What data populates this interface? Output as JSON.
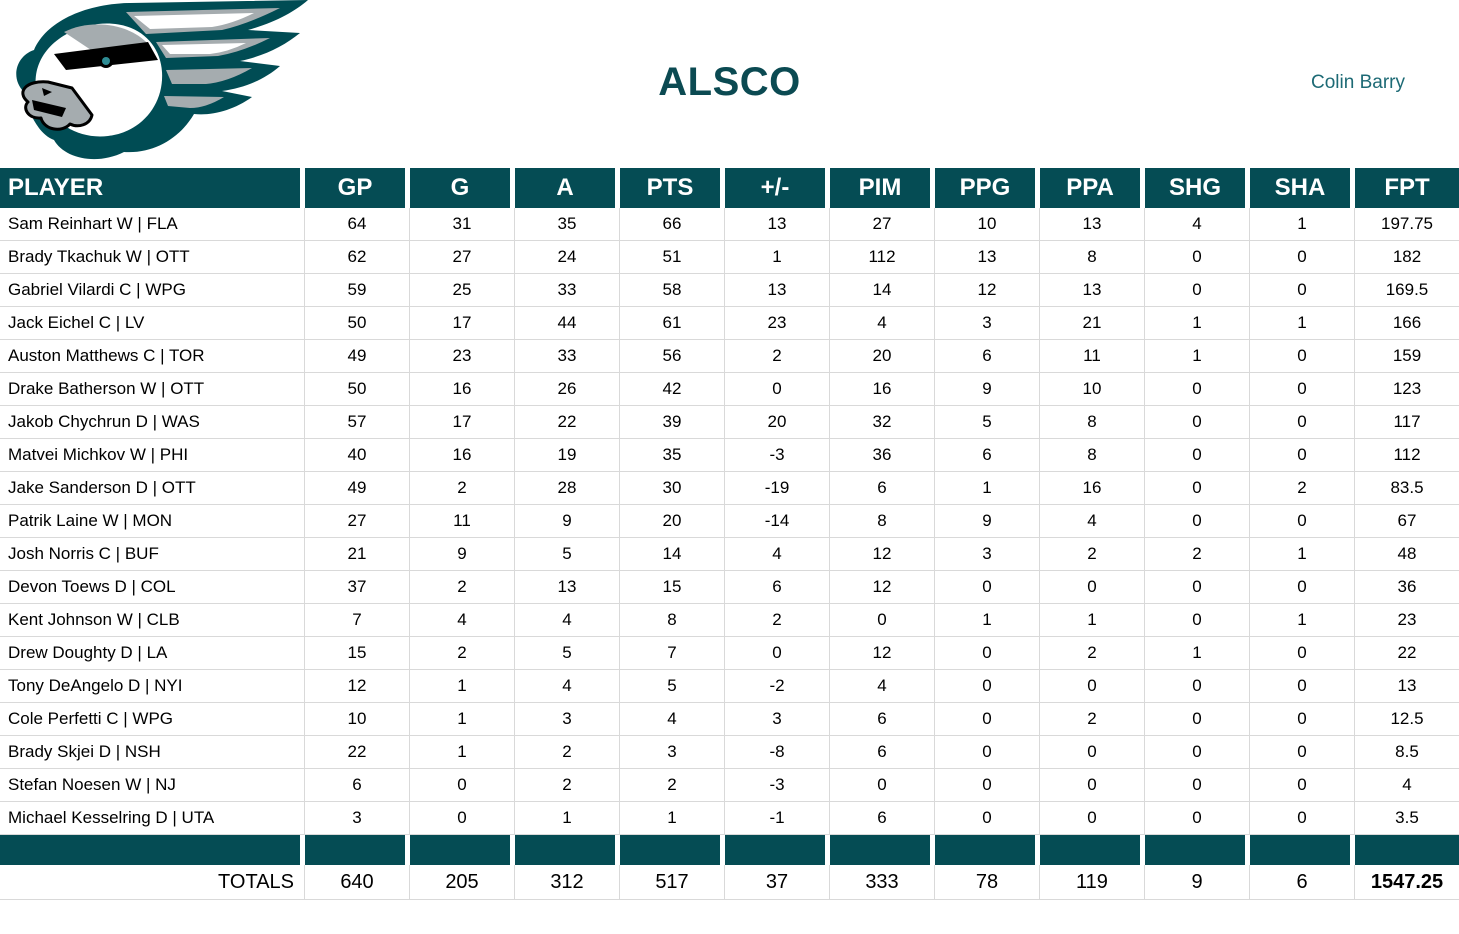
{
  "header": {
    "title": "ALSCO",
    "manager": "Colin Barry",
    "logo_alt": "eagle-head-logo"
  },
  "colors": {
    "header_bg": "#054C54",
    "title_text": "#0B4A52",
    "manager_text": "#1D6A75",
    "gridline": "#D9D9D9",
    "logo_green": "#004C54",
    "logo_silver": "#A5ACAF"
  },
  "table": {
    "columns": [
      "PLAYER",
      "GP",
      "G",
      "A",
      "PTS",
      "+/-",
      "PIM",
      "PPG",
      "PPA",
      "SHG",
      "SHA",
      "FPT"
    ],
    "rows": [
      {
        "player": "Sam Reinhart W | FLA",
        "stats": [
          64,
          31,
          35,
          66,
          13,
          27,
          10,
          13,
          4,
          1,
          197.75
        ]
      },
      {
        "player": "Brady Tkachuk W | OTT",
        "stats": [
          62,
          27,
          24,
          51,
          1,
          112,
          13,
          8,
          0,
          0,
          182
        ]
      },
      {
        "player": "Gabriel Vilardi C | WPG",
        "stats": [
          59,
          25,
          33,
          58,
          13,
          14,
          12,
          13,
          0,
          0,
          169.5
        ]
      },
      {
        "player": "Jack Eichel C | LV",
        "stats": [
          50,
          17,
          44,
          61,
          23,
          4,
          3,
          21,
          1,
          1,
          166
        ]
      },
      {
        "player": "Auston Matthews C | TOR",
        "stats": [
          49,
          23,
          33,
          56,
          2,
          20,
          6,
          11,
          1,
          0,
          159
        ]
      },
      {
        "player": "Drake Batherson W | OTT",
        "stats": [
          50,
          16,
          26,
          42,
          0,
          16,
          9,
          10,
          0,
          0,
          123
        ]
      },
      {
        "player": "Jakob Chychrun D | WAS",
        "stats": [
          57,
          17,
          22,
          39,
          20,
          32,
          5,
          8,
          0,
          0,
          117
        ]
      },
      {
        "player": "Matvei Michkov W | PHI",
        "stats": [
          40,
          16,
          19,
          35,
          -3,
          36,
          6,
          8,
          0,
          0,
          112
        ]
      },
      {
        "player": "Jake Sanderson D | OTT",
        "stats": [
          49,
          2,
          28,
          30,
          -19,
          6,
          1,
          16,
          0,
          2,
          83.5
        ]
      },
      {
        "player": "Patrik Laine W | MON",
        "stats": [
          27,
          11,
          9,
          20,
          -14,
          8,
          9,
          4,
          0,
          0,
          67
        ]
      },
      {
        "player": "Josh Norris C | BUF",
        "stats": [
          21,
          9,
          5,
          14,
          4,
          12,
          3,
          2,
          2,
          1,
          48
        ]
      },
      {
        "player": "Devon Toews D | COL",
        "stats": [
          37,
          2,
          13,
          15,
          6,
          12,
          0,
          0,
          0,
          0,
          36
        ]
      },
      {
        "player": "Kent Johnson W | CLB",
        "stats": [
          7,
          4,
          4,
          8,
          2,
          0,
          1,
          1,
          0,
          1,
          23
        ]
      },
      {
        "player": "Drew Doughty D | LA",
        "stats": [
          15,
          2,
          5,
          7,
          0,
          12,
          0,
          2,
          1,
          0,
          22
        ]
      },
      {
        "player": "Tony DeAngelo D | NYI",
        "stats": [
          12,
          1,
          4,
          5,
          -2,
          4,
          0,
          0,
          0,
          0,
          13
        ]
      },
      {
        "player": "Cole Perfetti C | WPG",
        "stats": [
          10,
          1,
          3,
          4,
          3,
          6,
          0,
          2,
          0,
          0,
          12.5
        ]
      },
      {
        "player": "Brady Skjei D | NSH",
        "stats": [
          22,
          1,
          2,
          3,
          -8,
          6,
          0,
          0,
          0,
          0,
          8.5
        ]
      },
      {
        "player": "Stefan Noesen W | NJ",
        "stats": [
          6,
          0,
          2,
          2,
          -3,
          0,
          0,
          0,
          0,
          0,
          4
        ]
      },
      {
        "player": "Michael Kesselring D | UTA",
        "stats": [
          3,
          0,
          1,
          1,
          -1,
          6,
          0,
          0,
          0,
          0,
          3.5
        ]
      }
    ],
    "totals_label": "TOTALS",
    "totals": [
      640,
      205,
      312,
      517,
      37,
      333,
      78,
      119,
      9,
      6,
      1547.25
    ]
  }
}
